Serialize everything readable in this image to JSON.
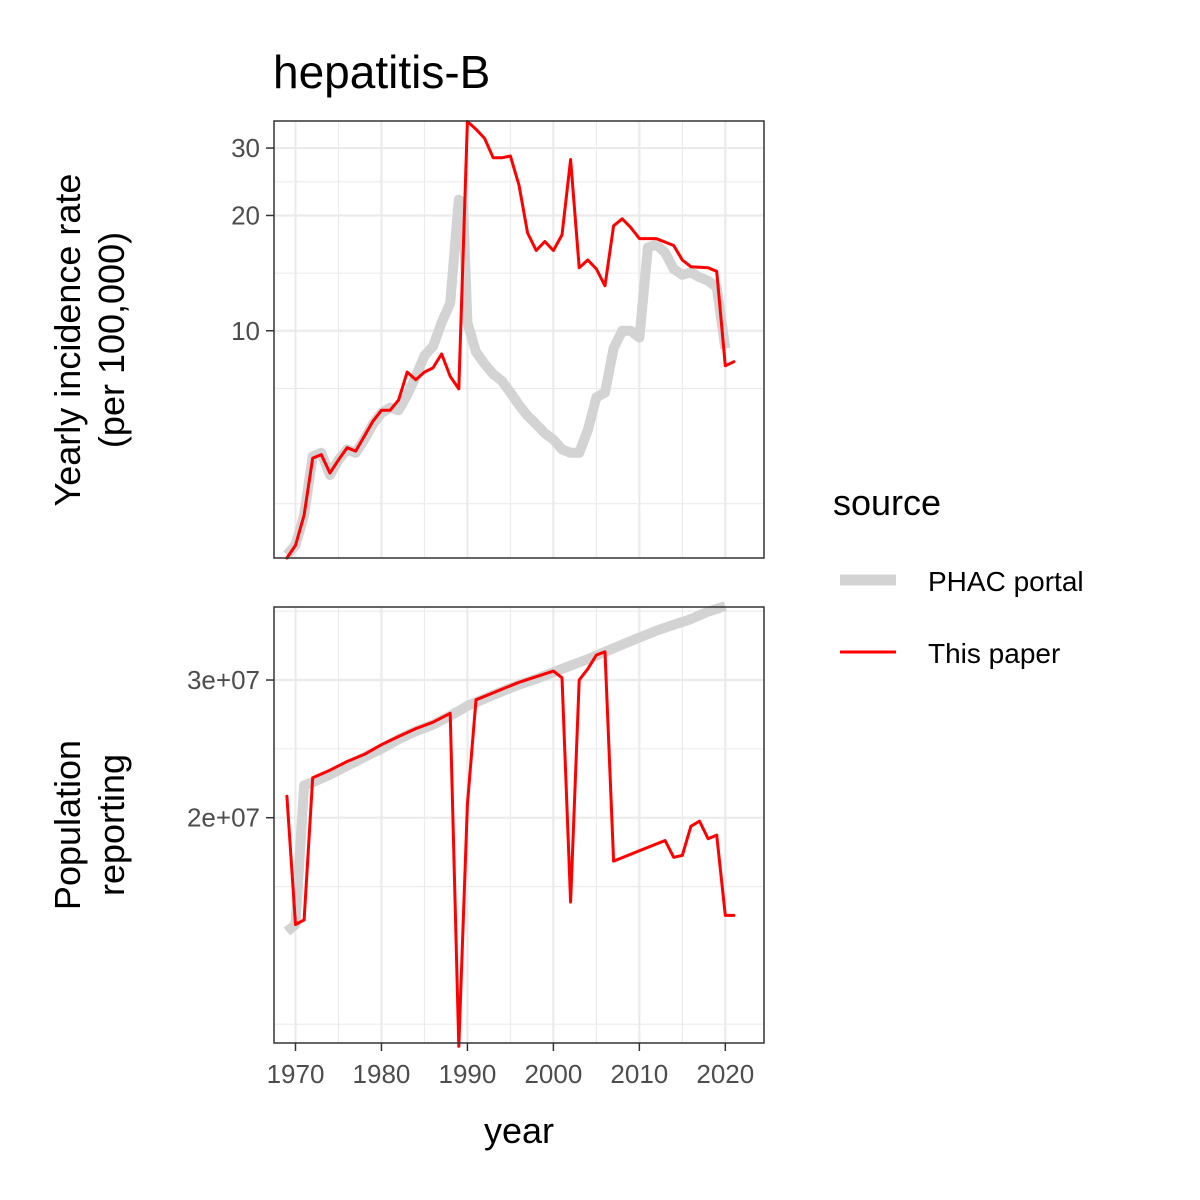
{
  "title": "hepatitis-B",
  "legend": {
    "title": "source",
    "items": [
      {
        "label": "PHAC portal",
        "color": "#d3d3d3"
      },
      {
        "label": "This paper",
        "color": "#ff0000"
      }
    ]
  },
  "chart_data": [
    {
      "type": "line",
      "ylabel_line1": "Yearly incidence rate",
      "ylabel_line2": "(per 100,000)",
      "y_scale": "log",
      "ylim": [
        2.55,
        35.3
      ],
      "xlim": [
        1967.5,
        2024.5
      ],
      "yticks": [
        10,
        20,
        30
      ],
      "ytick_labels": [
        "10",
        "20",
        "30"
      ],
      "series": [
        {
          "name": "PHAC portal",
          "color": "#d3d3d3",
          "points": [
            [
              1969,
              2.6
            ],
            [
              1970,
              2.75
            ],
            [
              1971,
              3.3
            ],
            [
              1972,
              4.7
            ],
            [
              1973,
              4.8
            ],
            [
              1974,
              4.2
            ],
            [
              1975,
              4.6
            ],
            [
              1976,
              4.9
            ],
            [
              1977,
              4.8
            ],
            [
              1978,
              5.2
            ],
            [
              1979,
              5.7
            ],
            [
              1980,
              6.1
            ],
            [
              1981,
              6.3
            ],
            [
              1982,
              6.2
            ],
            [
              1983,
              6.8
            ],
            [
              1984,
              7.6
            ],
            [
              1985,
              8.6
            ],
            [
              1986,
              9.1
            ],
            [
              1987,
              10.5
            ],
            [
              1988,
              11.8
            ],
            [
              1989,
              22.0
            ],
            [
              1989.5,
              21.5
            ],
            [
              1990,
              10.5
            ],
            [
              1991,
              8.8
            ],
            [
              1992,
              8.2
            ],
            [
              1993,
              7.7
            ],
            [
              1994,
              7.4
            ],
            [
              1995,
              6.9
            ],
            [
              1996,
              6.4
            ],
            [
              1997,
              6.0
            ],
            [
              1998,
              5.7
            ],
            [
              1999,
              5.4
            ],
            [
              2000,
              5.2
            ],
            [
              2001,
              4.9
            ],
            [
              2002,
              4.8
            ],
            [
              2003,
              4.8
            ],
            [
              2004,
              5.5
            ],
            [
              2005,
              6.7
            ],
            [
              2006,
              6.9
            ],
            [
              2007,
              9.0
            ],
            [
              2008,
              10.0
            ],
            [
              2009,
              10.0
            ],
            [
              2010,
              9.6
            ],
            [
              2011,
              16.5
            ],
            [
              2012,
              16.8
            ],
            [
              2013,
              16.0
            ],
            [
              2014,
              14.5
            ],
            [
              2015,
              14.0
            ],
            [
              2016,
              14.2
            ],
            [
              2017,
              13.8
            ],
            [
              2018,
              13.5
            ],
            [
              2019,
              13.0
            ],
            [
              2020,
              9.0
            ]
          ]
        },
        {
          "name": "This paper",
          "color": "#ff0000",
          "points": [
            [
              1969,
              2.55
            ],
            [
              1970,
              2.75
            ],
            [
              1971,
              3.3
            ],
            [
              1972,
              4.65
            ],
            [
              1973,
              4.75
            ],
            [
              1974,
              4.25
            ],
            [
              1975,
              4.6
            ],
            [
              1976,
              4.95
            ],
            [
              1977,
              4.85
            ],
            [
              1978,
              5.3
            ],
            [
              1979,
              5.8
            ],
            [
              1980,
              6.2
            ],
            [
              1981,
              6.2
            ],
            [
              1982,
              6.6
            ],
            [
              1983,
              7.8
            ],
            [
              1984,
              7.45
            ],
            [
              1985,
              7.8
            ],
            [
              1986,
              8.0
            ],
            [
              1987,
              8.7
            ],
            [
              1988,
              7.6
            ],
            [
              1989,
              7.05
            ],
            [
              1990,
              35.2
            ],
            [
              1991,
              33.6
            ],
            [
              1992,
              31.8
            ],
            [
              1993,
              28.3
            ],
            [
              1994,
              28.3
            ],
            [
              1995,
              28.6
            ],
            [
              1996,
              24.0
            ],
            [
              1997,
              18.0
            ],
            [
              1998,
              16.2
            ],
            [
              1999,
              17.1
            ],
            [
              2000,
              16.2
            ],
            [
              2001,
              17.8
            ],
            [
              2002,
              28.0
            ],
            [
              2003,
              14.6
            ],
            [
              2004,
              15.3
            ],
            [
              2005,
              14.5
            ],
            [
              2006,
              13.1
            ],
            [
              2007,
              18.8
            ],
            [
              2008,
              19.6
            ],
            [
              2009,
              18.6
            ],
            [
              2010,
              17.4
            ],
            [
              2012,
              17.4
            ],
            [
              2014,
              16.7
            ],
            [
              2015,
              15.3
            ],
            [
              2016,
              14.7
            ],
            [
              2018,
              14.6
            ],
            [
              2019,
              14.3
            ],
            [
              2020,
              8.1
            ],
            [
              2021,
              8.3
            ]
          ]
        }
      ]
    },
    {
      "type": "line",
      "ylabel_line1": "Population",
      "ylabel_line2": "reporting",
      "y_scale": "log",
      "ylim": [
        10300000.0,
        37200000.0
      ],
      "xlim": [
        1967.5,
        2024.5
      ],
      "yticks": [
        20000000,
        30000000
      ],
      "ytick_labels": [
        "2e+07",
        "3e+07"
      ],
      "series": [
        {
          "name": "PHAC portal",
          "color": "#d3d3d3",
          "points": [
            [
              1969,
              14300000.0
            ],
            [
              1970,
              14600000.0
            ],
            [
              1971,
              22000000.0
            ],
            [
              1972,
              22200000.0
            ],
            [
              1974,
              22700000.0
            ],
            [
              1976,
              23300000.0
            ],
            [
              1978,
              23900000.0
            ],
            [
              1980,
              24500000.0
            ],
            [
              1982,
              25200000.0
            ],
            [
              1984,
              25800000.0
            ],
            [
              1986,
              26300000.0
            ],
            [
              1988,
              27000000.0
            ],
            [
              1990,
              27800000.0
            ],
            [
              1992,
              28400000.0
            ],
            [
              1994,
              29000000.0
            ],
            [
              1996,
              29600000.0
            ],
            [
              1998,
              30100000.0
            ],
            [
              2000,
              30700000.0
            ],
            [
              2002,
              31300000.0
            ],
            [
              2004,
              31900000.0
            ],
            [
              2006,
              32600000.0
            ],
            [
              2008,
              33300000.0
            ],
            [
              2010,
              34000000.0
            ],
            [
              2012,
              34700000.0
            ],
            [
              2014,
              35300000.0
            ],
            [
              2016,
              35900000.0
            ],
            [
              2018,
              36700000.0
            ],
            [
              2020,
              37300000.0
            ]
          ]
        },
        {
          "name": "This paper",
          "color": "#ff0000",
          "points": [
            [
              1969,
              21300000.0
            ],
            [
              1970,
              14600000.0
            ],
            [
              1971,
              14800000.0
            ],
            [
              1972,
              22500000.0
            ],
            [
              1974,
              23000000.0
            ],
            [
              1976,
              23600000.0
            ],
            [
              1978,
              24100000.0
            ],
            [
              1980,
              24800000.0
            ],
            [
              1982,
              25400000.0
            ],
            [
              1984,
              26000000.0
            ],
            [
              1986,
              26500000.0
            ],
            [
              1988,
              27200000.0
            ],
            [
              1989,
              10200000.0
            ],
            [
              1990,
              20800000.0
            ],
            [
              1991,
              28300000.0
            ],
            [
              1992,
              28600000.0
            ],
            [
              1994,
              29200000.0
            ],
            [
              1996,
              29800000.0
            ],
            [
              1998,
              30300000.0
            ],
            [
              2000,
              30800000.0
            ],
            [
              2001,
              30200000.0
            ],
            [
              2002,
              15600000.0
            ],
            [
              2003,
              30000000.0
            ],
            [
              2004,
              31000000.0
            ],
            [
              2005,
              32300000.0
            ],
            [
              2006,
              32600000.0
            ],
            [
              2007,
              17600000.0
            ],
            [
              2013,
              18700000.0
            ],
            [
              2014,
              17800000.0
            ],
            [
              2015,
              17900000.0
            ],
            [
              2016,
              19500000.0
            ],
            [
              2017,
              19800000.0
            ],
            [
              2018,
              18800000.0
            ],
            [
              2019,
              19000000.0
            ],
            [
              2020,
              15000000.0
            ],
            [
              2021,
              15000000.0
            ]
          ]
        }
      ]
    }
  ],
  "xaxis": {
    "label": "year",
    "ticks": [
      1970,
      1980,
      1990,
      2000,
      2010,
      2020
    ],
    "minor_ticks": [
      1975,
      1985,
      1995,
      2005,
      2015
    ]
  }
}
